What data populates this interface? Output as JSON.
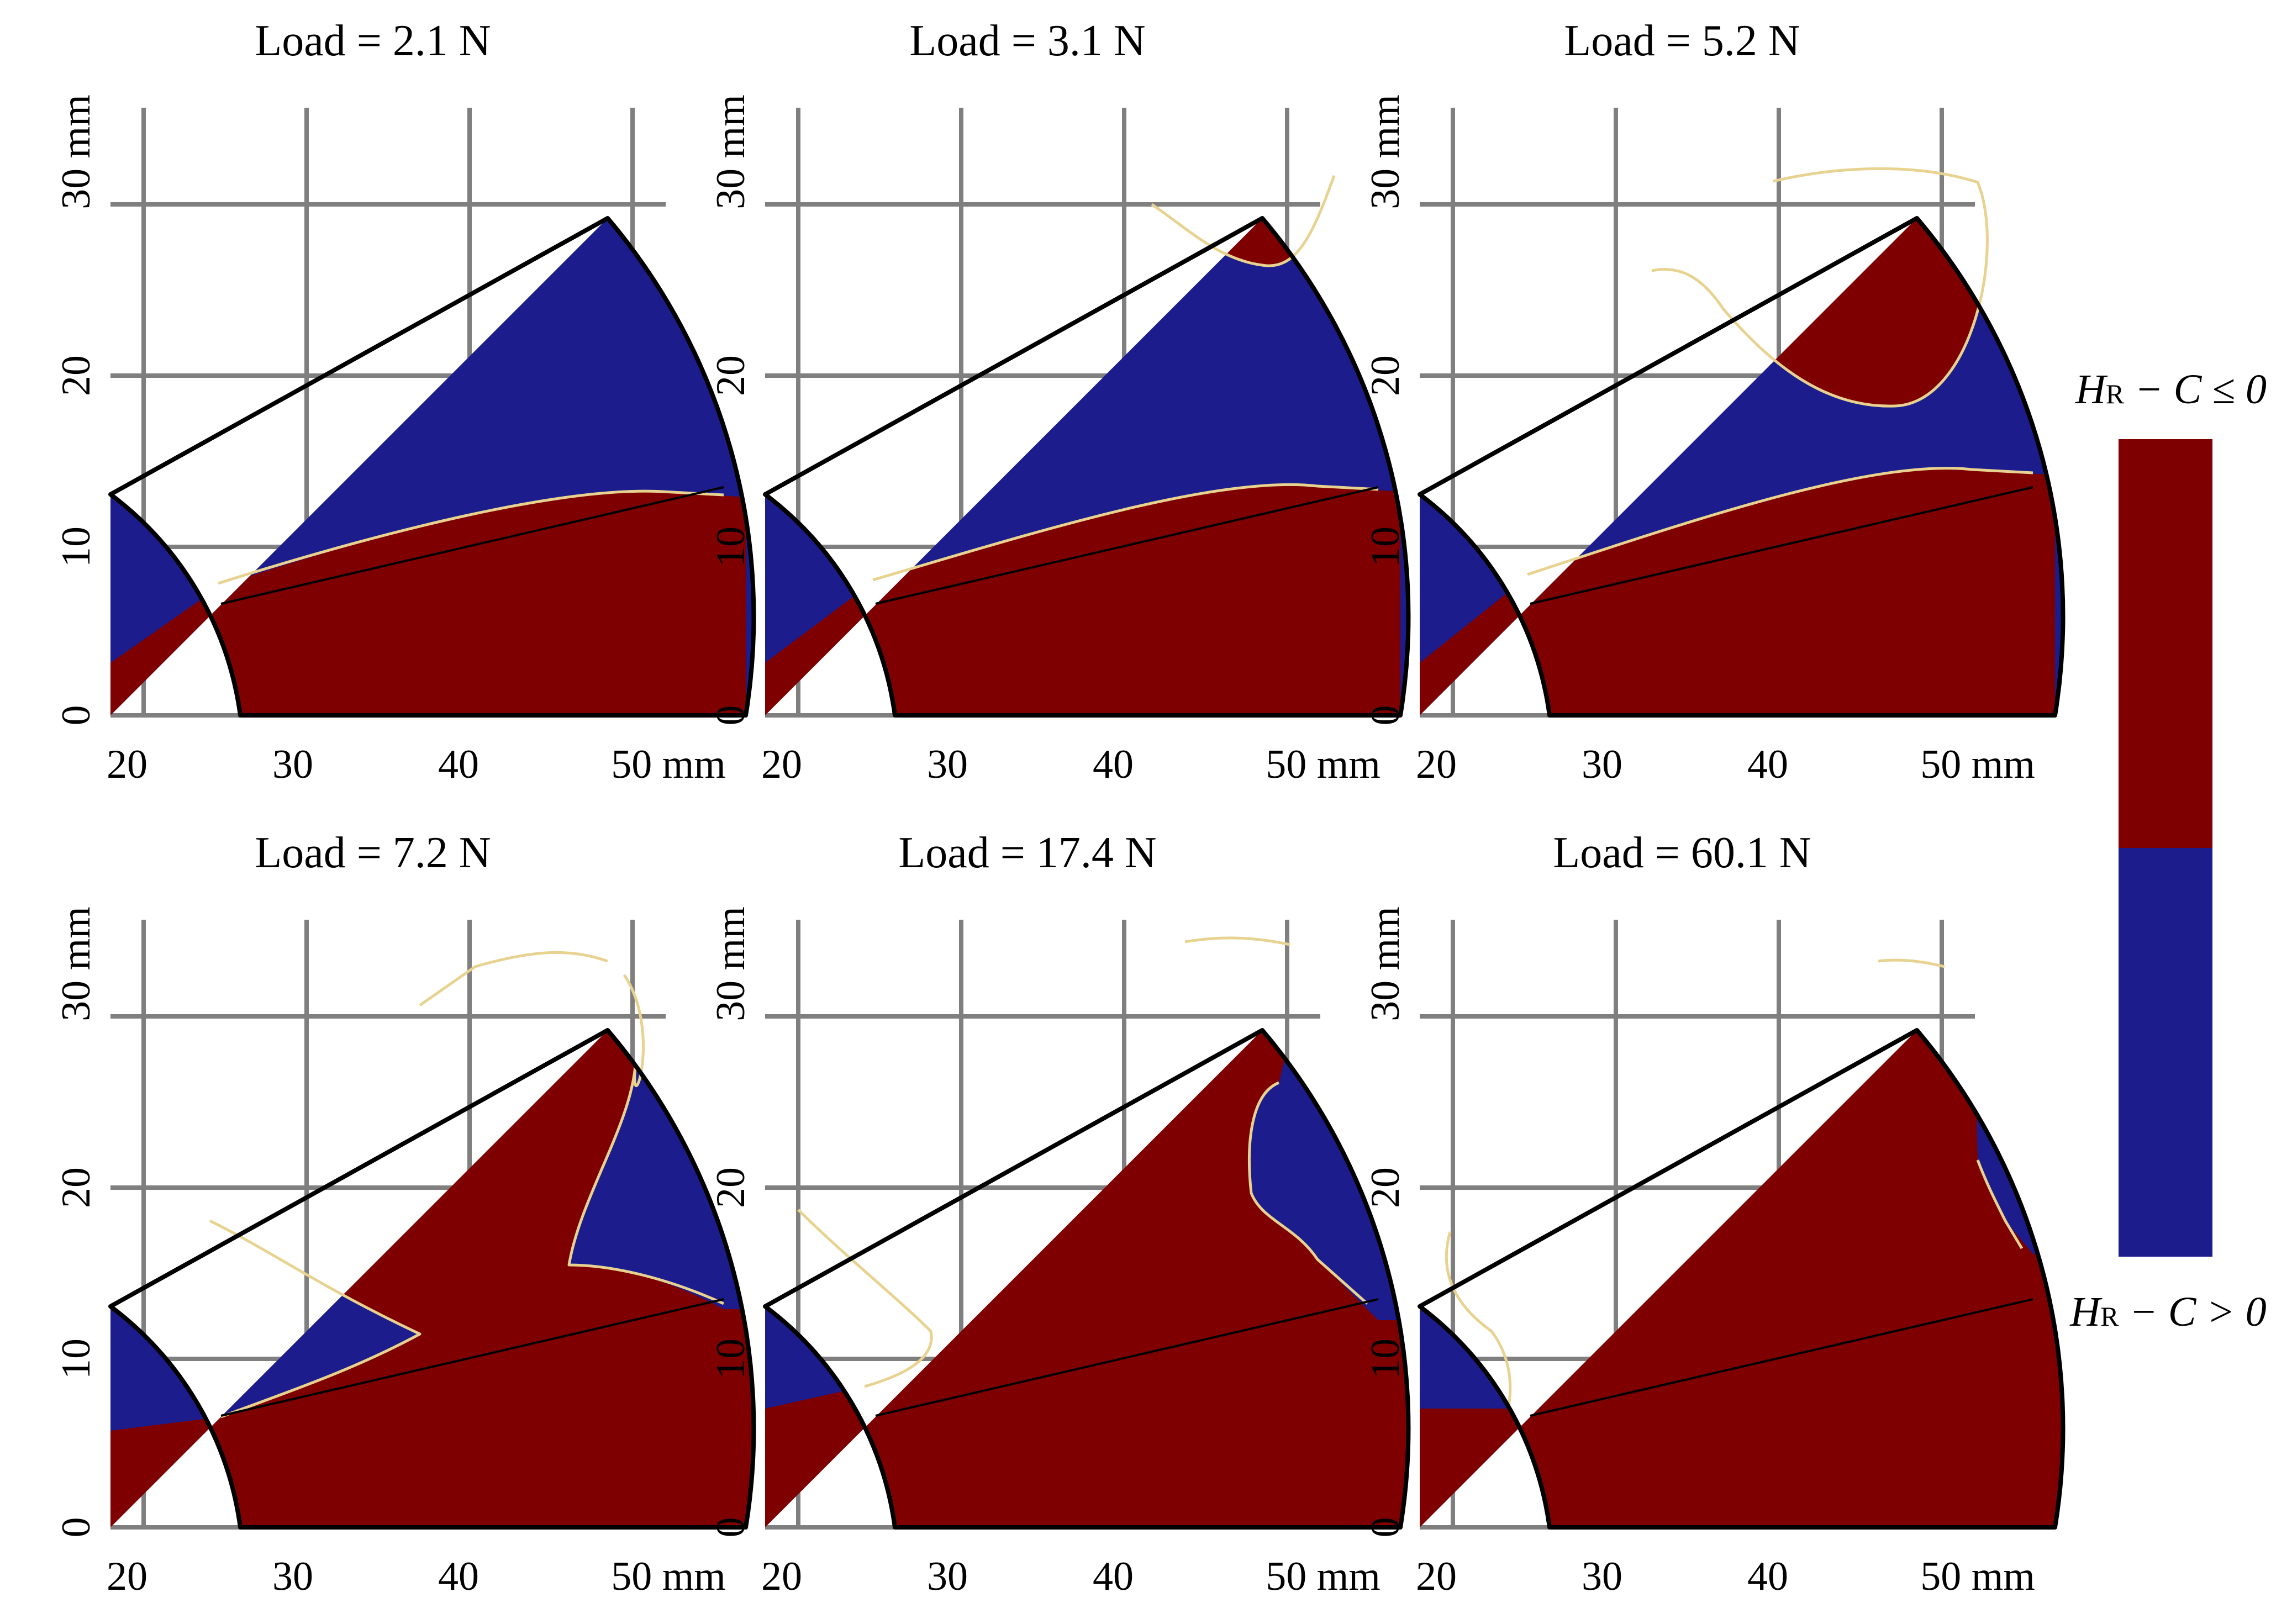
{
  "figure": {
    "colors": {
      "negative": "#7f0000",
      "positive": "#1c1c8c",
      "grid": "#7f7f7f",
      "boundary": "#e8d290"
    },
    "axis": {
      "x_ticks": [
        "20",
        "30",
        "40"
      ],
      "x_last_tick": "50 mm",
      "y_ticks": [
        "0",
        "10",
        "20"
      ],
      "y_last_tick": "30 mm"
    },
    "panels": [
      {
        "title": "Load = 2.1 N",
        "load_N": 2.1
      },
      {
        "title": "Load = 3.1 N",
        "load_N": 3.1
      },
      {
        "title": "Load = 5.2 N",
        "load_N": 5.2
      },
      {
        "title": "Load = 7.2 N",
        "load_N": 7.2
      },
      {
        "title": "Load = 17.4 N",
        "load_N": 17.4
      },
      {
        "title": "Load = 60.1 N",
        "load_N": 60.1
      }
    ],
    "legend": {
      "top_label_symbol": "H",
      "top_label_sub": "R",
      "top_label_rest": " − C ≤ 0",
      "bottom_label_symbol": "H",
      "bottom_label_sub": "R",
      "bottom_label_rest": " − C > 0"
    }
  }
}
